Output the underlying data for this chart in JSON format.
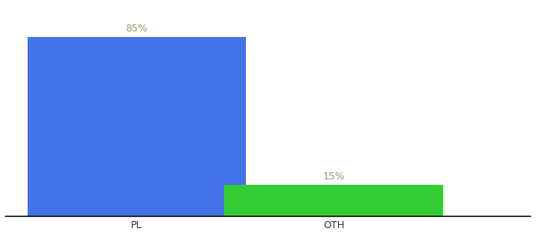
{
  "categories": [
    "PL",
    "OTH"
  ],
  "values": [
    85,
    15
  ],
  "bar_colors": [
    "#4472e8",
    "#33cc33"
  ],
  "label_color": "#999966",
  "value_labels": [
    "85%",
    "15%"
  ],
  "background_color": "#ffffff",
  "ylim": [
    0,
    100
  ],
  "bar_width": 0.5,
  "bar_positions": [
    0.3,
    0.75
  ],
  "xlim": [
    0.0,
    1.2
  ],
  "label_fontsize": 9,
  "tick_fontsize": 9,
  "spine_color": "#111111"
}
